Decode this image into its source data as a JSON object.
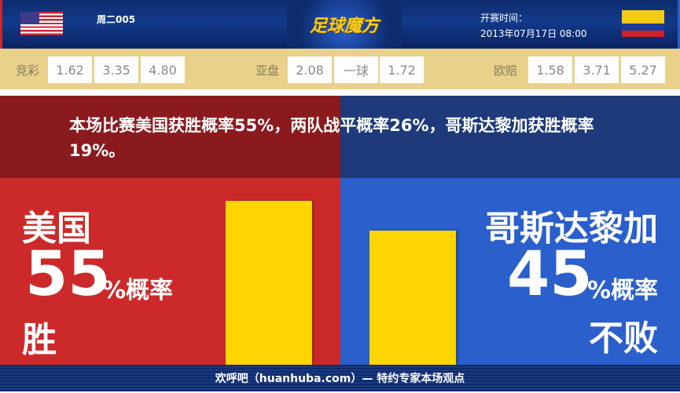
{
  "header": {
    "match_code": "周二005",
    "logo_text": "足球魔方",
    "start_label": "开赛时间：",
    "start_time": "2013年07月17日 08:00",
    "home_flag": "usa-flag",
    "away_flag": "colombia-flag"
  },
  "odds": {
    "jingcai": {
      "label": "竞彩",
      "values": [
        "1.62",
        "3.35",
        "4.80"
      ]
    },
    "yapan": {
      "label": "亚盘",
      "values": [
        "2.08",
        "一球",
        "1.72"
      ]
    },
    "ouzhou": {
      "label": "欧赔",
      "values": [
        "1.58",
        "3.71",
        "5.27"
      ]
    }
  },
  "summary": "本场比赛美国获胜概率55%，两队战平概率26%，哥斯达黎加获胜概率19%。",
  "home": {
    "team": "美国",
    "percent": "55",
    "unit": "%概率",
    "outcome": "胜",
    "value": 55
  },
  "away": {
    "team": "哥斯达黎加",
    "percent": "45",
    "unit": "%概率",
    "outcome": "不败",
    "value": 45
  },
  "colors": {
    "home_bg": "#cc2a2a",
    "away_bg": "#2a5fcc",
    "bar": "#ffd500"
  },
  "footer": "欢呼吧（huanhuba.com）— 特约专家本场观点"
}
